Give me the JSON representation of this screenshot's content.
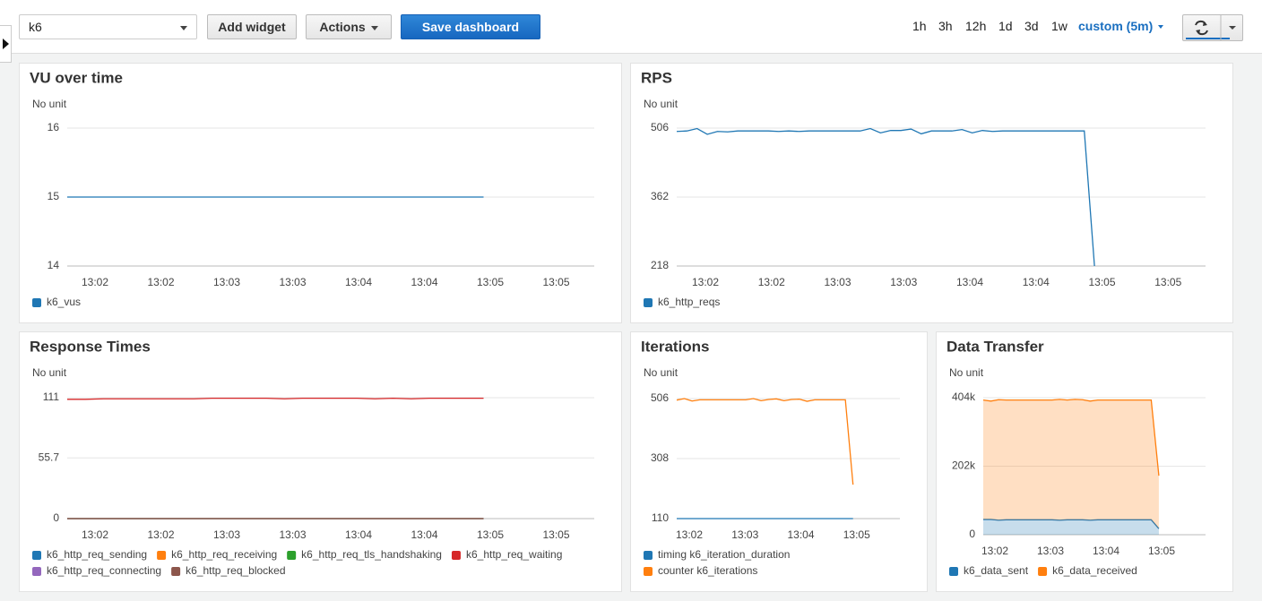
{
  "toolbar": {
    "dashboard_select": "k6",
    "buttons": [
      "Add widget",
      "Actions",
      "Save dashboard"
    ],
    "time_ranges": [
      "1h",
      "3h",
      "12h",
      "1d",
      "3d",
      "1w"
    ],
    "custom_range": "custom (5m)"
  },
  "chart_data": [
    {
      "type": "line",
      "title": "VU over time",
      "unit_label": "No unit",
      "ylim": [
        14,
        16
      ],
      "yticks": [
        14,
        15,
        16
      ],
      "grid": true,
      "x_labels": [
        "13:02",
        "13:02",
        "13:03",
        "13:03",
        "13:04",
        "13:04",
        "13:05",
        "13:05"
      ],
      "series": [
        {
          "name": "k6_vus",
          "color": "#1f77b4",
          "values": [
            15,
            15,
            15,
            15,
            15,
            15,
            15,
            15,
            15,
            15,
            15,
            15,
            15,
            15,
            15,
            15,
            15,
            15,
            15,
            15,
            15,
            15,
            15,
            15,
            15,
            15,
            15,
            15,
            15,
            15,
            15,
            15,
            15,
            15,
            15,
            15,
            15,
            15,
            15,
            15,
            15,
            15
          ]
        }
      ]
    },
    {
      "type": "line",
      "title": "RPS",
      "unit_label": "No unit",
      "ylim": [
        218,
        506
      ],
      "yticks": [
        218,
        362,
        506
      ],
      "grid": true,
      "x_labels": [
        "13:02",
        "13:02",
        "13:03",
        "13:03",
        "13:04",
        "13:04",
        "13:05",
        "13:05"
      ],
      "series": [
        {
          "name": "k6_http_reqs",
          "color": "#1f77b4",
          "values": [
            499,
            500,
            505,
            493,
            499,
            498,
            500,
            500,
            500,
            500,
            499,
            500,
            499,
            500,
            500,
            500,
            500,
            500,
            500,
            505,
            496,
            501,
            501,
            504,
            494,
            500,
            500,
            500,
            503,
            496,
            501,
            499,
            500,
            500,
            500,
            500,
            500,
            500,
            500,
            500,
            500,
            218
          ]
        }
      ]
    },
    {
      "type": "line",
      "title": "Response Times",
      "unit_label": "No unit",
      "ylim": [
        0,
        111
      ],
      "yticks": [
        0,
        55.7,
        111
      ],
      "grid": true,
      "x_labels": [
        "13:02",
        "13:02",
        "13:03",
        "13:03",
        "13:04",
        "13:04",
        "13:05",
        "13:05"
      ],
      "series": [
        {
          "name": "k6_http_req_sending",
          "color": "#1f77b4",
          "values": [
            0,
            0,
            0,
            0,
            0,
            0,
            0,
            0,
            0,
            0,
            0,
            0,
            0,
            0,
            0,
            0,
            0,
            0,
            0,
            0,
            0,
            0,
            0,
            0
          ]
        },
        {
          "name": "k6_http_req_receiving",
          "color": "#ff7f0e",
          "values": [
            0,
            0,
            0,
            0,
            0,
            0,
            0,
            0,
            0,
            0,
            0,
            0,
            0,
            0,
            0,
            0,
            0,
            0,
            0,
            0,
            0,
            0,
            0,
            0
          ]
        },
        {
          "name": "k6_http_req_tls_handshaking",
          "color": "#2ca02c",
          "values": [
            0,
            0,
            0,
            0,
            0,
            0,
            0,
            0,
            0,
            0,
            0,
            0,
            0,
            0,
            0,
            0,
            0,
            0,
            0,
            0,
            0,
            0,
            0,
            0
          ]
        },
        {
          "name": "k6_http_req_waiting",
          "color": "#d62728",
          "values": [
            109.5,
            109.5,
            110,
            110,
            110,
            110,
            110,
            110,
            110.5,
            110.5,
            110.5,
            110.5,
            110,
            110.5,
            110.5,
            110.5,
            110.5,
            110,
            110.5,
            110,
            110.5,
            110.5,
            110.5,
            110.5
          ]
        },
        {
          "name": "k6_http_req_connecting",
          "color": "#9467bd",
          "values": [
            0,
            0,
            0,
            0,
            0,
            0,
            0,
            0,
            0,
            0,
            0,
            0,
            0,
            0,
            0,
            0,
            0,
            0,
            0,
            0,
            0,
            0,
            0,
            0
          ]
        },
        {
          "name": "k6_http_req_blocked",
          "color": "#8c564b",
          "values": [
            0,
            0,
            0,
            0,
            0,
            0,
            0,
            0,
            0,
            0,
            0,
            0,
            0,
            0,
            0,
            0,
            0,
            0,
            0,
            0,
            0,
            0,
            0,
            0
          ]
        }
      ]
    },
    {
      "type": "line",
      "title": "Iterations",
      "unit_label": "No unit",
      "ylim": [
        110,
        506
      ],
      "yticks": [
        110,
        308,
        506
      ],
      "grid": true,
      "x_labels": [
        "13:02",
        "13:03",
        "13:04",
        "13:05"
      ],
      "series": [
        {
          "name": "timing k6_iteration_duration",
          "color": "#1f77b4",
          "values": [
            110,
            110,
            110,
            110,
            110,
            110,
            110,
            110,
            110,
            110,
            110,
            110,
            110,
            110,
            110,
            110,
            110,
            110,
            110,
            110,
            110,
            110,
            110,
            110
          ]
        },
        {
          "name": "counter k6_iterations",
          "color": "#ff7f0e",
          "values": [
            501,
            506,
            498,
            502,
            502,
            502,
            502,
            502,
            502,
            502,
            506,
            499,
            503,
            505,
            499,
            503,
            504,
            497,
            502,
            502,
            502,
            502,
            502,
            222
          ]
        }
      ]
    },
    {
      "type": "area",
      "stacked": true,
      "title": "Data Transfer",
      "unit_label": "No unit",
      "ylim": [
        0,
        404000
      ],
      "yticks": [
        0,
        {
          "value": 202000,
          "label": "202k"
        },
        {
          "value": 404000,
          "label": "404k"
        }
      ],
      "grid": true,
      "x_labels": [
        "13:02",
        "13:03",
        "13:04",
        "13:05"
      ],
      "series": [
        {
          "name": "k6_data_sent",
          "color": "#1f77b4",
          "values": [
            45000,
            45000,
            43000,
            44000,
            44000,
            44000,
            44000,
            44000,
            44000,
            44000,
            43000,
            44000,
            44000,
            44000,
            43000,
            44000,
            44000,
            44000,
            44000,
            44000,
            44000,
            44000,
            44000,
            18000
          ]
        },
        {
          "name": "k6_data_received",
          "color": "#ff7f0e",
          "values": [
            352000,
            349000,
            355000,
            353000,
            353000,
            353000,
            353000,
            353000,
            353000,
            353000,
            356000,
            353000,
            355000,
            354000,
            351000,
            353000,
            353000,
            353000,
            353000,
            353000,
            353000,
            353000,
            353000,
            156000
          ]
        }
      ]
    }
  ]
}
